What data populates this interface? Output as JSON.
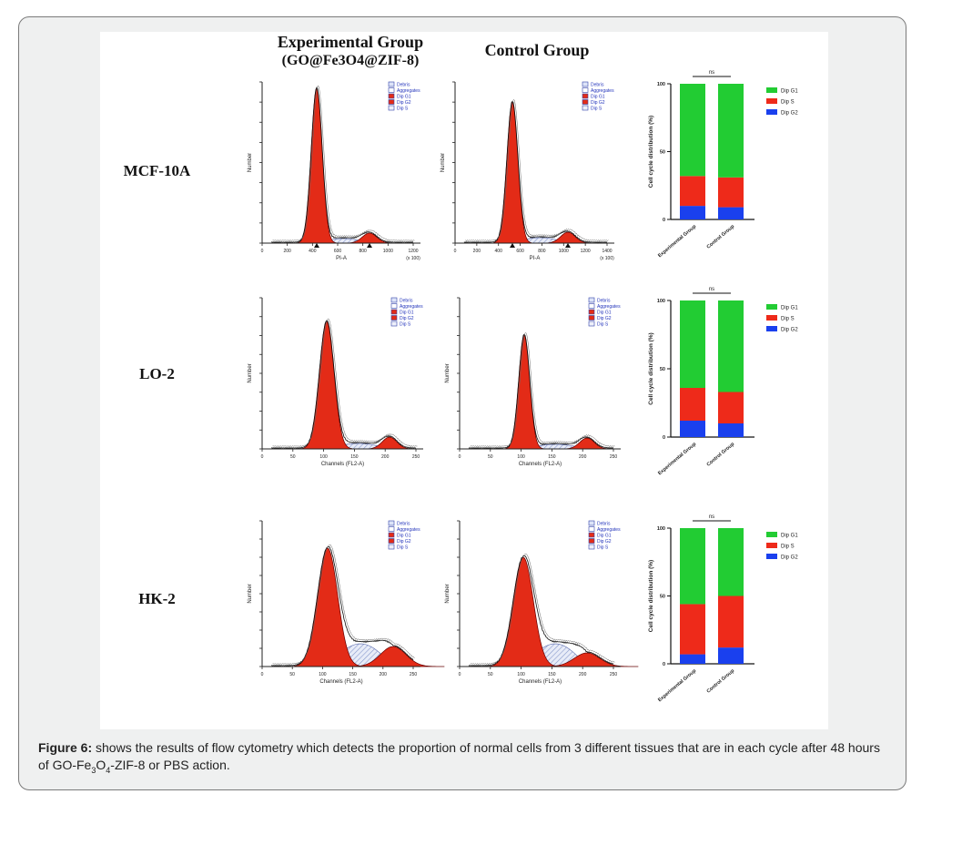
{
  "figure": {
    "col_titles": {
      "experimental": "Experimental Group",
      "experimental_sub": "(GO@Fe3O4@ZIF-8)",
      "control": "Control Group"
    },
    "rows": [
      "MCF-10A",
      "LO-2",
      "HK-2"
    ]
  },
  "caption": {
    "label": "Figure 6:",
    "text_a": " shows the results of flow cytometry which detects the proportion of normal cells from 3 different tissues that are in each cycle after 48 hours of GO-Fe",
    "sub_3": "3",
    "text_b": "O",
    "sub_4": "4",
    "text_c": "-ZIF-8 or PBS action."
  },
  "histogram_legend": [
    "Debris",
    "Aggregates",
    "Dip G1",
    "Dip G2",
    "Dip S"
  ],
  "histograms": [
    {
      "row": "MCF-10A",
      "xlabel": "PI-A",
      "xunit": "(x 100)",
      "xticks": [
        "0",
        "200",
        "400",
        "600",
        "800",
        "1000",
        "1200"
      ],
      "ylabel": "Number"
    },
    {
      "row": "MCF-10A",
      "xlabel": "PI-A",
      "xunit": "(x 100)",
      "xticks": [
        "0",
        "200",
        "400",
        "600",
        "800",
        "1000",
        "1200",
        "1400"
      ],
      "ylabel": "Number"
    },
    {
      "row": "LO-2",
      "xlabel": "Channels (FL2-A)",
      "xticks": [
        "0",
        "50",
        "100",
        "150",
        "200",
        "250"
      ],
      "ylabel": "Number"
    },
    {
      "row": "LO-2",
      "xlabel": "Channels (FL2-A)",
      "xticks": [
        "0",
        "50",
        "100",
        "150",
        "200",
        "250"
      ],
      "ylabel": "Number"
    },
    {
      "row": "HK-2",
      "xlabel": "Channels (FL2-A)",
      "xticks": [
        "0",
        "50",
        "100",
        "150",
        "200",
        "250"
      ],
      "ylabel": "Number"
    },
    {
      "row": "HK-2",
      "xlabel": "Channels (FL2-A)",
      "xticks": [
        "0",
        "50",
        "100",
        "150",
        "200",
        "250"
      ],
      "ylabel": "Number"
    }
  ],
  "colors": {
    "g1": "#22cc33",
    "s": "#ee2a1a",
    "g2": "#1a40ee",
    "hist_fill": "#e32b17",
    "hatch": "#8899cc"
  },
  "chart_data": [
    {
      "type": "bar",
      "stacked": true,
      "row": "MCF-10A",
      "categories": [
        "Experimental Group",
        "Control Group"
      ],
      "series": [
        {
          "name": "Dip G2",
          "values": [
            10,
            9
          ]
        },
        {
          "name": "Dip S",
          "values": [
            22,
            22
          ]
        },
        {
          "name": "Dip G1",
          "values": [
            68,
            69
          ]
        }
      ],
      "ylabel": "Cell cycle distribution (%)",
      "ylim": [
        0,
        100
      ],
      "yticks": [
        "0",
        "50",
        "100"
      ],
      "annotation": "ns",
      "legend": "right"
    },
    {
      "type": "bar",
      "stacked": true,
      "row": "LO-2",
      "categories": [
        "Experimental Group",
        "Control Group"
      ],
      "series": [
        {
          "name": "Dip G2",
          "values": [
            12,
            10
          ]
        },
        {
          "name": "Dip S",
          "values": [
            24,
            23
          ]
        },
        {
          "name": "Dip G1",
          "values": [
            64,
            67
          ]
        }
      ],
      "ylabel": "Cell cycle distribution (%)",
      "ylim": [
        0,
        100
      ],
      "yticks": [
        "0",
        "50",
        "100"
      ],
      "annotation": "ns",
      "legend": "right"
    },
    {
      "type": "bar",
      "stacked": true,
      "row": "HK-2",
      "categories": [
        "Experimental Group",
        "Control Group"
      ],
      "series": [
        {
          "name": "Dip G2",
          "values": [
            7,
            12
          ]
        },
        {
          "name": "Dip S",
          "values": [
            37,
            38
          ]
        },
        {
          "name": "Dip G1",
          "values": [
            56,
            50
          ]
        }
      ],
      "ylabel": "Cell cycle distribution (%)",
      "ylim": [
        0,
        100
      ],
      "yticks": [
        "0",
        "50",
        "100"
      ],
      "annotation": "ns",
      "legend": "right"
    }
  ]
}
